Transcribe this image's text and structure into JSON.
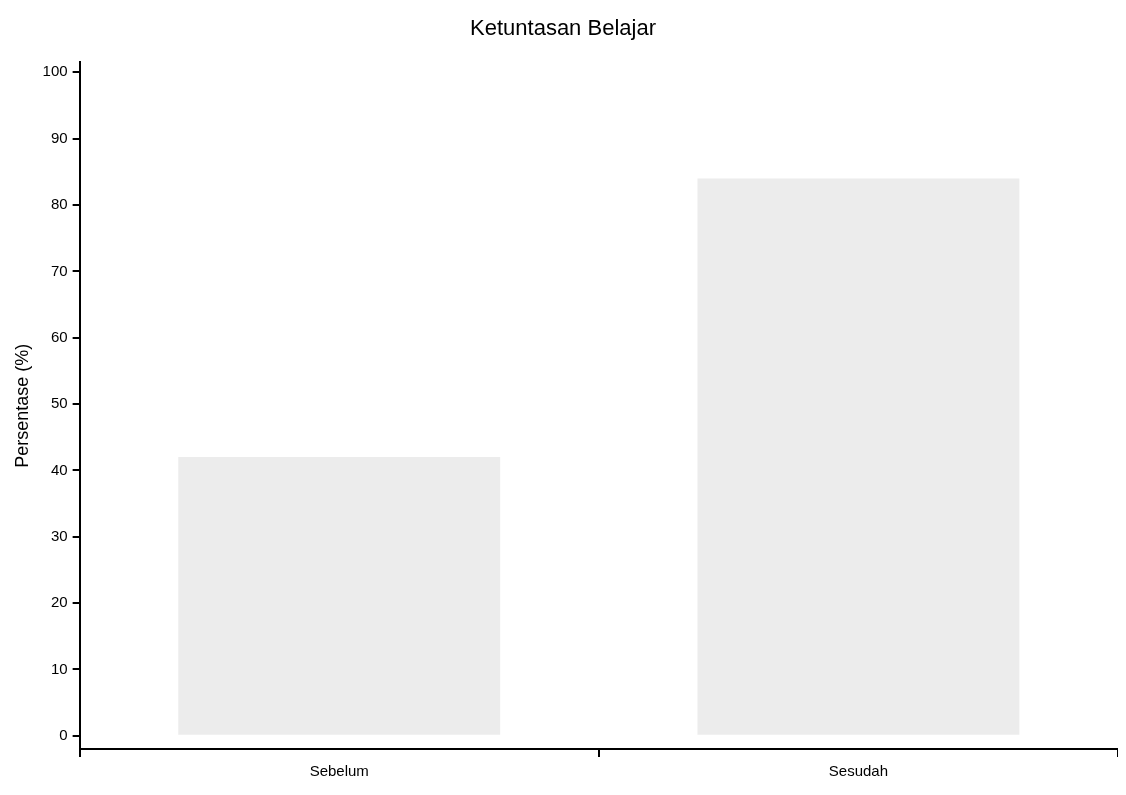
{
  "chart_data": {
    "type": "bar",
    "title": "Ketuntasan Belajar",
    "ylabel": "Persentase (%)",
    "categories": [
      "Sebelum",
      "Sesudah"
    ],
    "values": [
      42,
      84
    ],
    "color": "#ececec",
    "ylim": [
      -2,
      101.5
    ],
    "yticks": [
      0,
      10,
      20,
      30,
      40,
      50,
      60,
      70,
      80,
      90,
      100
    ],
    "grid": false,
    "legend": false
  }
}
